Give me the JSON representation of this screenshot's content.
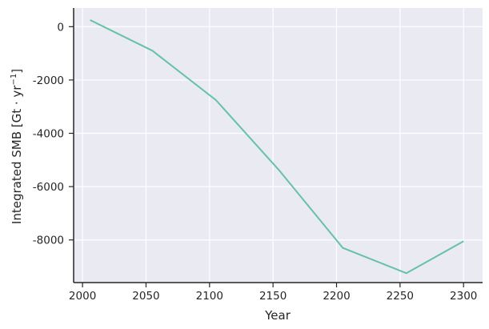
{
  "chart_data": {
    "type": "line",
    "title": "",
    "xlabel": "Year",
    "ylabel_main": "Integrated SMB [Gt · yr",
    "ylabel_sup": "−1",
    "ylabel_close": "]",
    "xlim": [
      1993,
      2315
    ],
    "ylim": [
      -9600,
      700
    ],
    "xticks": [
      2000,
      2050,
      2100,
      2150,
      2200,
      2250,
      2300
    ],
    "xtick_labels": [
      "2000",
      "2050",
      "2100",
      "2150",
      "2200",
      "2250",
      "2300"
    ],
    "yticks": [
      0,
      -2000,
      -4000,
      -6000,
      -8000
    ],
    "ytick_labels": [
      "0",
      "-2000",
      "-4000",
      "-6000",
      "-8000"
    ],
    "grid": true,
    "background": "#eaeaf2",
    "grid_color": "#ffffff",
    "series": [
      {
        "color": "#66c2a5",
        "x": [
          2006,
          2055,
          2105,
          2155,
          2205,
          2255,
          2300
        ],
        "y": [
          250,
          -900,
          -2750,
          -5400,
          -8300,
          -9250,
          -8050
        ]
      }
    ]
  }
}
